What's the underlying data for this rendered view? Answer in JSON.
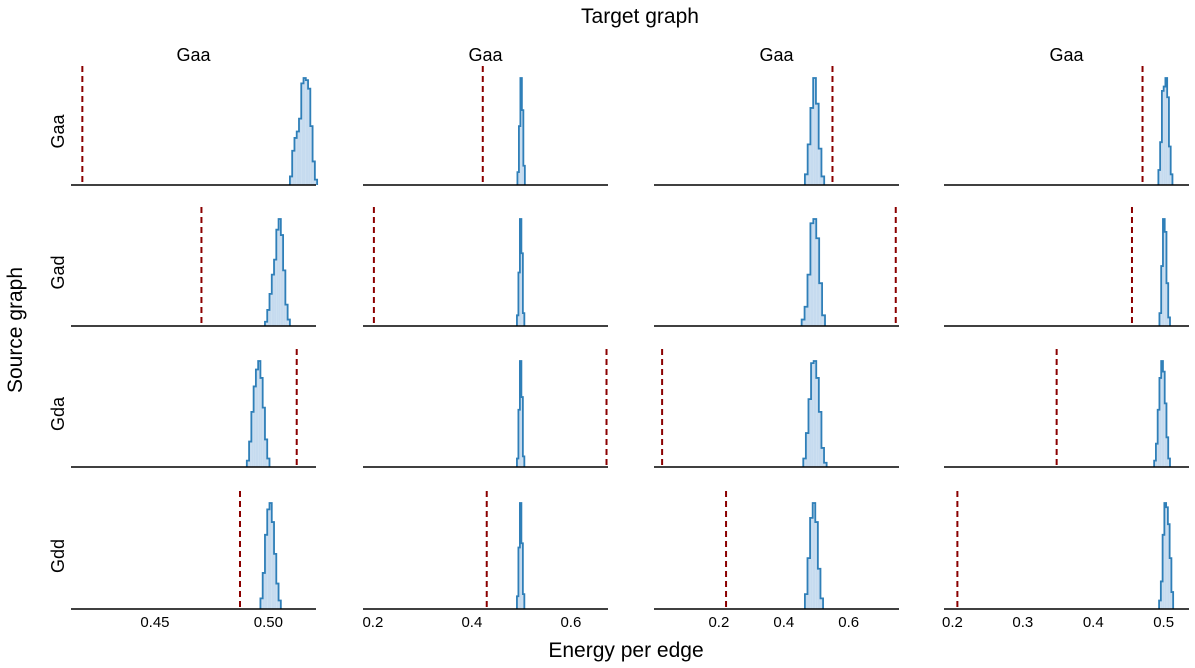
{
  "figure": {
    "title": "Target graph",
    "xlabel": "Energy per edge",
    "ylabel": "Source graph",
    "column_titles": [
      "Gaa",
      "Gaa",
      "Gaa",
      "Gaa"
    ],
    "row_labels": [
      "Gaa",
      "Gad",
      "Gda",
      "Gdd"
    ]
  },
  "colors": {
    "histogram_line": "#2f7fb8",
    "histogram_fill": "#c6dbef",
    "reference_line": "#8b0000",
    "axis": "#000000"
  },
  "chart_data": {
    "type": "histogram-grid",
    "rows": 4,
    "cols": 4,
    "sharex": "column",
    "columns": [
      {
        "xlim": [
          0.413,
          0.521
        ],
        "ticks": [
          0.45,
          0.5
        ],
        "tick_labels": [
          "0.45",
          "0.50"
        ]
      },
      {
        "xlim": [
          0.18,
          0.675
        ],
        "ticks": [
          0.2,
          0.4,
          0.6
        ],
        "tick_labels": [
          "0.2",
          "0.4",
          "0.6"
        ]
      },
      {
        "xlim": [
          0.0,
          0.755
        ],
        "ticks": [
          0.2,
          0.4,
          0.6
        ],
        "tick_labels": [
          "0.2",
          "0.4",
          "0.6"
        ]
      },
      {
        "xlim": [
          0.188,
          0.536
        ],
        "ticks": [
          0.2,
          0.3,
          0.4,
          0.5
        ],
        "tick_labels": [
          "0.2",
          "0.3",
          "0.4",
          "0.5"
        ]
      }
    ],
    "panels": [
      {
        "row": 0,
        "col": 0,
        "reference": 0.418,
        "bin_start": 0.5095,
        "bin_width": 0.001,
        "counts": [
          8,
          32,
          44,
          50,
          62,
          95,
          100,
          98,
          90,
          55,
          22,
          5
        ]
      },
      {
        "row": 0,
        "col": 1,
        "reference": 0.422,
        "bin_start": 0.492,
        "bin_width": 0.003,
        "counts": [
          12,
          55,
          100,
          70,
          18
        ]
      },
      {
        "row": 0,
        "col": 2,
        "reference": 0.55,
        "bin_start": 0.465,
        "bin_width": 0.0085,
        "counts": [
          10,
          38,
          72,
          100,
          76,
          34,
          8
        ]
      },
      {
        "row": 0,
        "col": 3,
        "reference": 0.47,
        "bin_start": 0.4925,
        "bin_width": 0.0025,
        "counts": [
          14,
          40,
          88,
          92,
          100,
          82,
          36,
          10
        ]
      },
      {
        "row": 1,
        "col": 0,
        "reference": 0.4705,
        "bin_start": 0.4985,
        "bin_width": 0.001,
        "counts": [
          4,
          15,
          30,
          48,
          62,
          90,
          100,
          85,
          52,
          20,
          6
        ]
      },
      {
        "row": 1,
        "col": 1,
        "reference": 0.202,
        "bin_start": 0.491,
        "bin_width": 0.003,
        "counts": [
          10,
          50,
          100,
          68,
          12
        ]
      },
      {
        "row": 1,
        "col": 2,
        "reference": 0.745,
        "bin_start": 0.455,
        "bin_width": 0.009,
        "counts": [
          6,
          18,
          48,
          96,
          100,
          82,
          40,
          10
        ]
      },
      {
        "row": 1,
        "col": 3,
        "reference": 0.455,
        "bin_start": 0.494,
        "bin_width": 0.0025,
        "counts": [
          12,
          56,
          100,
          88,
          40,
          8
        ]
      },
      {
        "row": 2,
        "col": 0,
        "reference": 0.5125,
        "bin_start": 0.4905,
        "bin_width": 0.001,
        "counts": [
          6,
          24,
          52,
          76,
          92,
          100,
          84,
          56,
          26,
          8
        ]
      },
      {
        "row": 2,
        "col": 1,
        "reference": 0.672,
        "bin_start": 0.491,
        "bin_width": 0.003,
        "counts": [
          8,
          54,
          100,
          66,
          10
        ]
      },
      {
        "row": 2,
        "col": 2,
        "reference": 0.025,
        "bin_start": 0.46,
        "bin_width": 0.008,
        "counts": [
          8,
          32,
          64,
          98,
          100,
          84,
          52,
          18,
          4
        ]
      },
      {
        "row": 2,
        "col": 3,
        "reference": 0.348,
        "bin_start": 0.4865,
        "bin_width": 0.0025,
        "counts": [
          6,
          22,
          54,
          84,
          100,
          90,
          60,
          28,
          8
        ]
      },
      {
        "row": 3,
        "col": 0,
        "reference": 0.4875,
        "bin_start": 0.4965,
        "bin_width": 0.001,
        "counts": [
          10,
          34,
          70,
          94,
          100,
          82,
          52,
          24,
          8
        ]
      },
      {
        "row": 3,
        "col": 1,
        "reference": 0.43,
        "bin_start": 0.491,
        "bin_width": 0.003,
        "counts": [
          12,
          58,
          100,
          62,
          14
        ]
      },
      {
        "row": 3,
        "col": 2,
        "reference": 0.222,
        "bin_start": 0.465,
        "bin_width": 0.008,
        "counts": [
          14,
          48,
          86,
          100,
          82,
          38,
          10
        ]
      },
      {
        "row": 3,
        "col": 3,
        "reference": 0.207,
        "bin_start": 0.4935,
        "bin_width": 0.0025,
        "counts": [
          8,
          26,
          70,
          100,
          96,
          80,
          48,
          16
        ]
      }
    ]
  }
}
